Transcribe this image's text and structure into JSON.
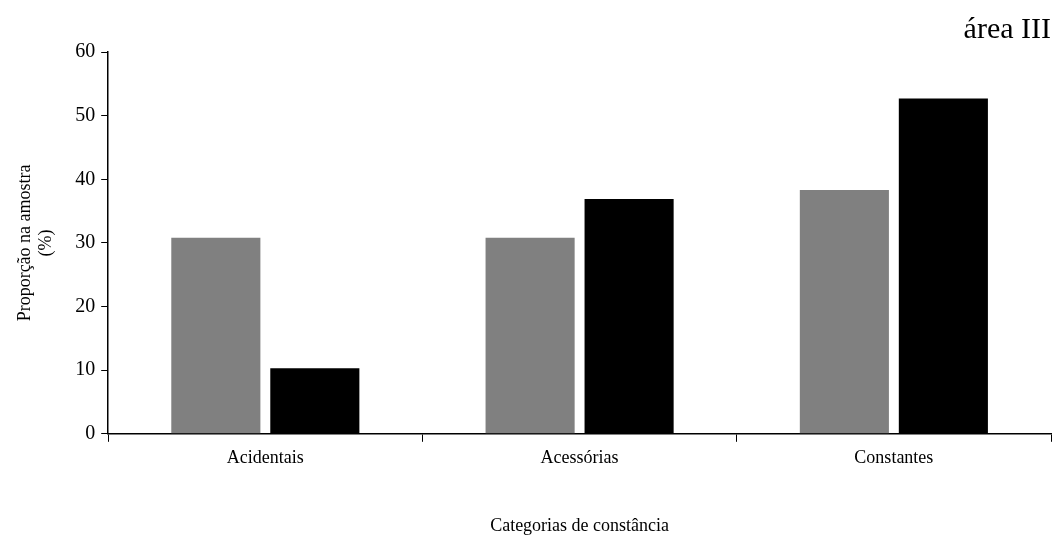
{
  "chart_data": {
    "type": "bar",
    "title": "área III",
    "xlabel": "Categorias de constância",
    "ylabel": "Proporção na amostra\n(%)",
    "categories": [
      "Acidentais",
      "Acessórias",
      "Constantes"
    ],
    "series": [
      {
        "color": "#808080",
        "values": [
          30.8,
          30.8,
          38.3
        ]
      },
      {
        "color": "#000000",
        "values": [
          10.3,
          36.9,
          52.7
        ]
      }
    ],
    "ylim": [
      0,
      60
    ],
    "yticks": [
      0,
      10,
      20,
      30,
      40,
      50,
      60
    ],
    "grid": false,
    "legend": false
  }
}
